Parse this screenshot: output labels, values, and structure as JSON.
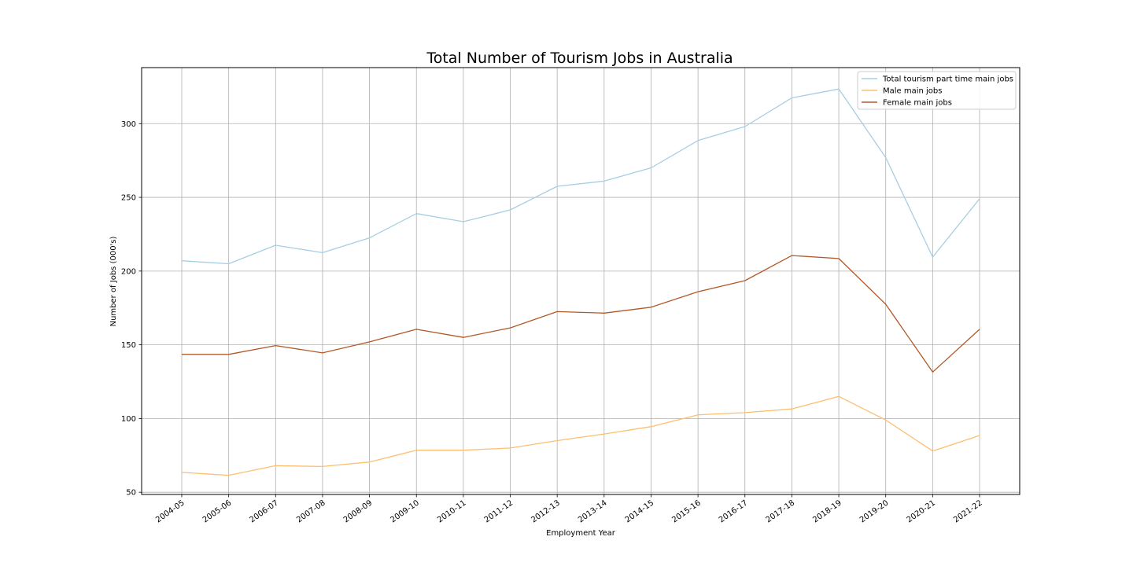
{
  "chart_data": {
    "type": "line",
    "title": "Total Number of Tourism Jobs in Australia",
    "xlabel": "Employment Year",
    "ylabel": "Number of Jobs (000's)",
    "categories": [
      "2004-05",
      "2005-06",
      "2006-07",
      "2007-08",
      "2008-09",
      "2009-10",
      "2010-11",
      "2011-12",
      "2012-13",
      "2013-14",
      "2014-15",
      "2015-16",
      "2016-17",
      "2017-18",
      "2018-19",
      "2019-20",
      "2020-21",
      "2021-22"
    ],
    "ylim": [
      48.5,
      338
    ],
    "yticks": [
      50,
      100,
      150,
      200,
      250,
      300
    ],
    "grid": true,
    "legend_position": "top-right",
    "series": [
      {
        "name": "Total tourism part time main jobs",
        "color": "#a6cee3",
        "values": [
          207,
          205,
          217.5,
          212.5,
          222.5,
          239,
          233.5,
          241.5,
          257.5,
          261,
          270,
          288.5,
          298,
          317.5,
          323.5,
          277,
          209.5,
          249
        ]
      },
      {
        "name": "Male main jobs",
        "color": "#fdbf6f",
        "values": [
          63.5,
          61.5,
          68,
          67.5,
          70.5,
          78.5,
          78.5,
          80,
          85,
          89.5,
          94.5,
          102.5,
          104,
          106.5,
          115,
          99,
          78,
          88.5
        ]
      },
      {
        "name": "Female main jobs",
        "color": "#b15928",
        "values": [
          143.5,
          143.5,
          149.5,
          144.5,
          152,
          160.5,
          155,
          161.5,
          172.5,
          171.5,
          175.5,
          186,
          193.5,
          210.5,
          208.5,
          177.5,
          131.5,
          160.5
        ]
      }
    ]
  }
}
